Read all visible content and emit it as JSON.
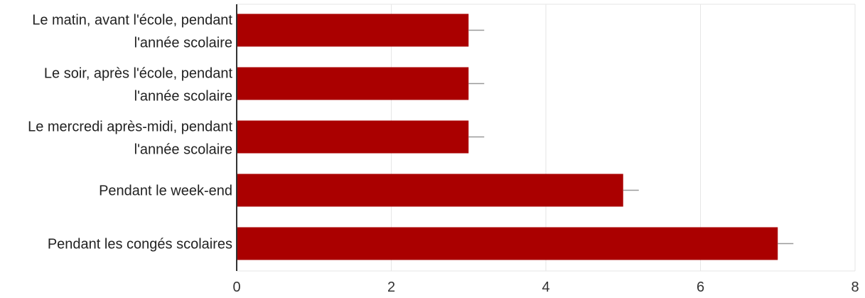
{
  "chart_data": {
    "type": "bar",
    "orientation": "horizontal",
    "categories": [
      [
        "Le matin, avant l'école, pendant",
        "l'année scolaire"
      ],
      [
        "Le soir, après l'école, pendant",
        "l'année scolaire"
      ],
      [
        "Le mercredi après-midi, pendant",
        "l'année scolaire"
      ],
      [
        "Pendant le week-end"
      ],
      [
        "Pendant les congés scolaires"
      ]
    ],
    "values": [
      3,
      3,
      3,
      5,
      7
    ],
    "xlim": [
      0,
      8
    ],
    "xticks": [
      "0",
      "2",
      "4",
      "6",
      "8"
    ],
    "xlabel": "",
    "ylabel": "",
    "grid": true,
    "legend": "none",
    "error_bars": true,
    "colors": {
      "bar": "#aa0000",
      "grid": "#e6e6e6",
      "axis": "#333333",
      "error_bar": "#999999"
    }
  }
}
